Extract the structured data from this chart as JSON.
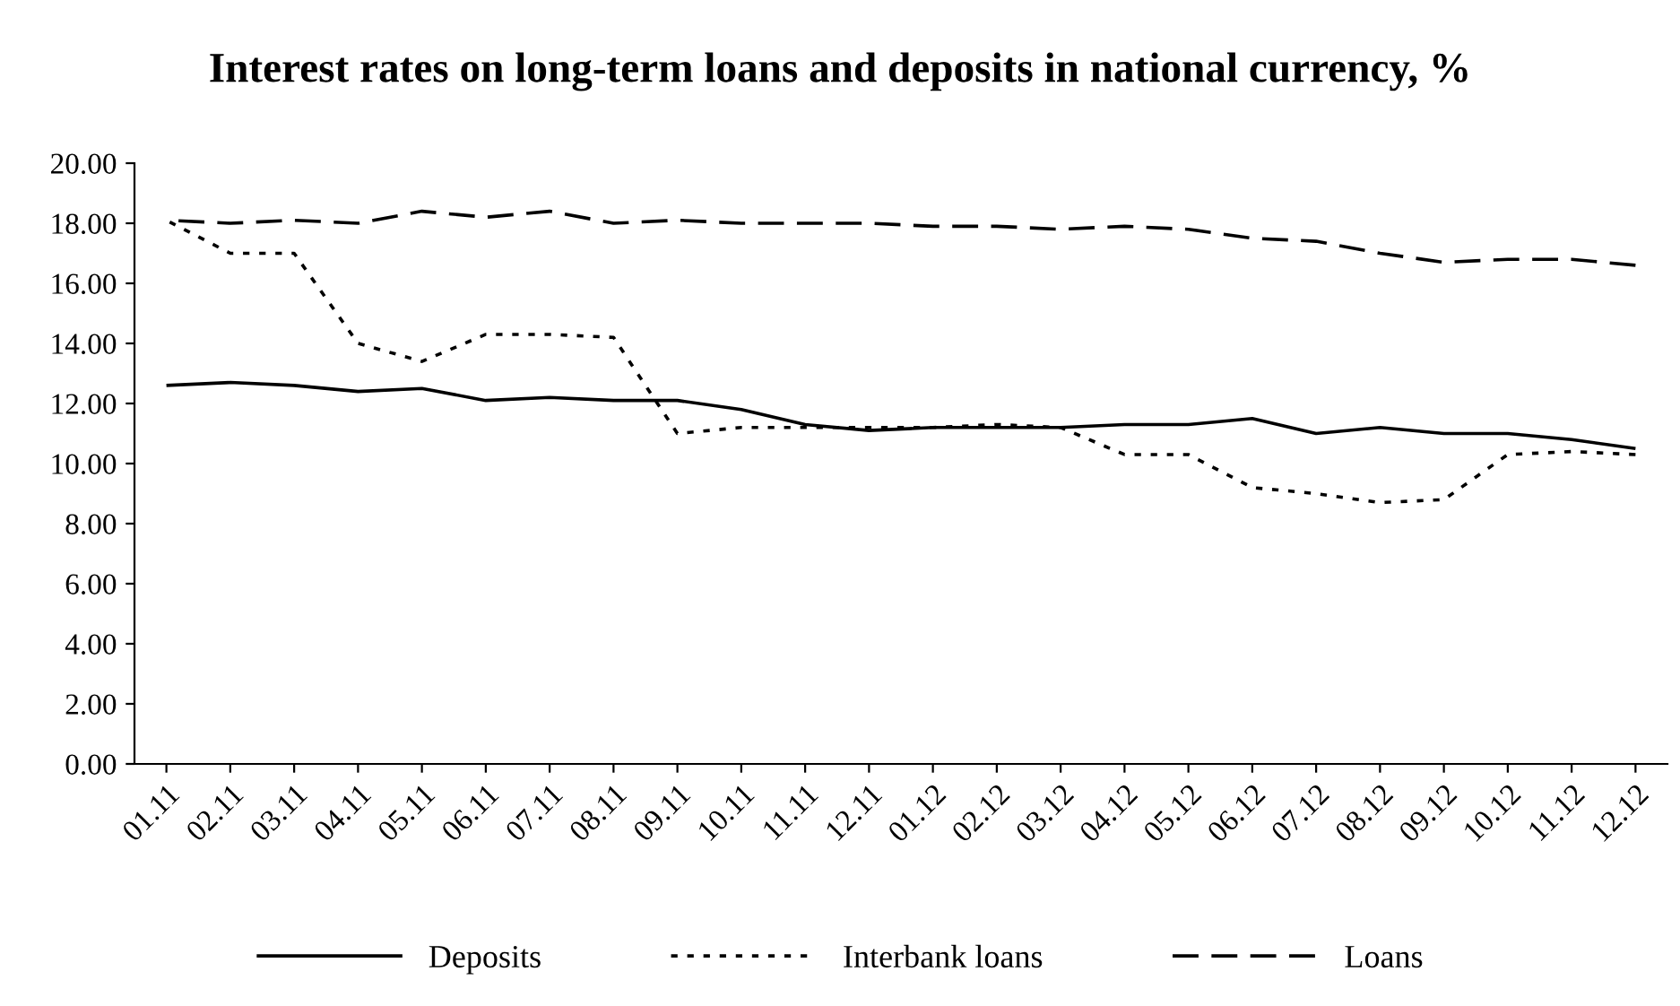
{
  "chart_data": {
    "type": "line",
    "title": "Interest rates on long-term loans and deposits in national currency, %",
    "categories": [
      "01.11",
      "02.11",
      "03.11",
      "04.11",
      "05.11",
      "06.11",
      "07.11",
      "08.11",
      "09.11",
      "10.11",
      "11.11",
      "12.11",
      "01.12",
      "02.12",
      "03.12",
      "04.12",
      "05.12",
      "06.12",
      "07.12",
      "08.12",
      "09.12",
      "10.12",
      "11.12",
      "12.12"
    ],
    "series": [
      {
        "name": "Deposits",
        "color": "#000000",
        "line_style": "solid",
        "values": [
          12.6,
          12.7,
          12.6,
          12.4,
          12.5,
          12.1,
          12.2,
          12.1,
          12.1,
          11.8,
          11.3,
          11.1,
          11.2,
          11.2,
          11.2,
          11.3,
          11.3,
          11.5,
          11.0,
          11.2,
          11.0,
          11.0,
          10.8,
          10.5
        ]
      },
      {
        "name": "Interbank loans",
        "color": "#000000",
        "line_style": "dotted",
        "values": [
          18.1,
          17.0,
          17.0,
          14.0,
          13.4,
          14.3,
          14.3,
          14.2,
          11.0,
          11.2,
          11.2,
          11.2,
          11.2,
          11.3,
          11.2,
          10.3,
          10.3,
          9.2,
          9.0,
          8.7,
          8.8,
          10.3,
          10.4,
          10.3
        ]
      },
      {
        "name": "Loans",
        "color": "#000000",
        "line_style": "dashed",
        "values": [
          18.1,
          18.0,
          18.1,
          18.0,
          18.4,
          18.2,
          18.4,
          18.0,
          18.1,
          18.0,
          18.0,
          18.0,
          17.9,
          17.9,
          17.8,
          17.9,
          17.8,
          17.5,
          17.4,
          17.0,
          16.7,
          16.8,
          16.8,
          16.6
        ]
      }
    ],
    "ylim": [
      0,
      20
    ],
    "yticks": [
      {
        "value": 0,
        "label": "0.00"
      },
      {
        "value": 2,
        "label": "2.00"
      },
      {
        "value": 4,
        "label": "4.00"
      },
      {
        "value": 6,
        "label": "6.00"
      },
      {
        "value": 8,
        "label": "8.00"
      },
      {
        "value": 10,
        "label": "10.00"
      },
      {
        "value": 12,
        "label": "12.00"
      },
      {
        "value": 14,
        "label": "14.00"
      },
      {
        "value": 16,
        "label": "16.00"
      },
      {
        "value": 18,
        "label": "18.00"
      },
      {
        "value": 20,
        "label": "20.00"
      }
    ],
    "legend": "bottom",
    "grid": false
  }
}
